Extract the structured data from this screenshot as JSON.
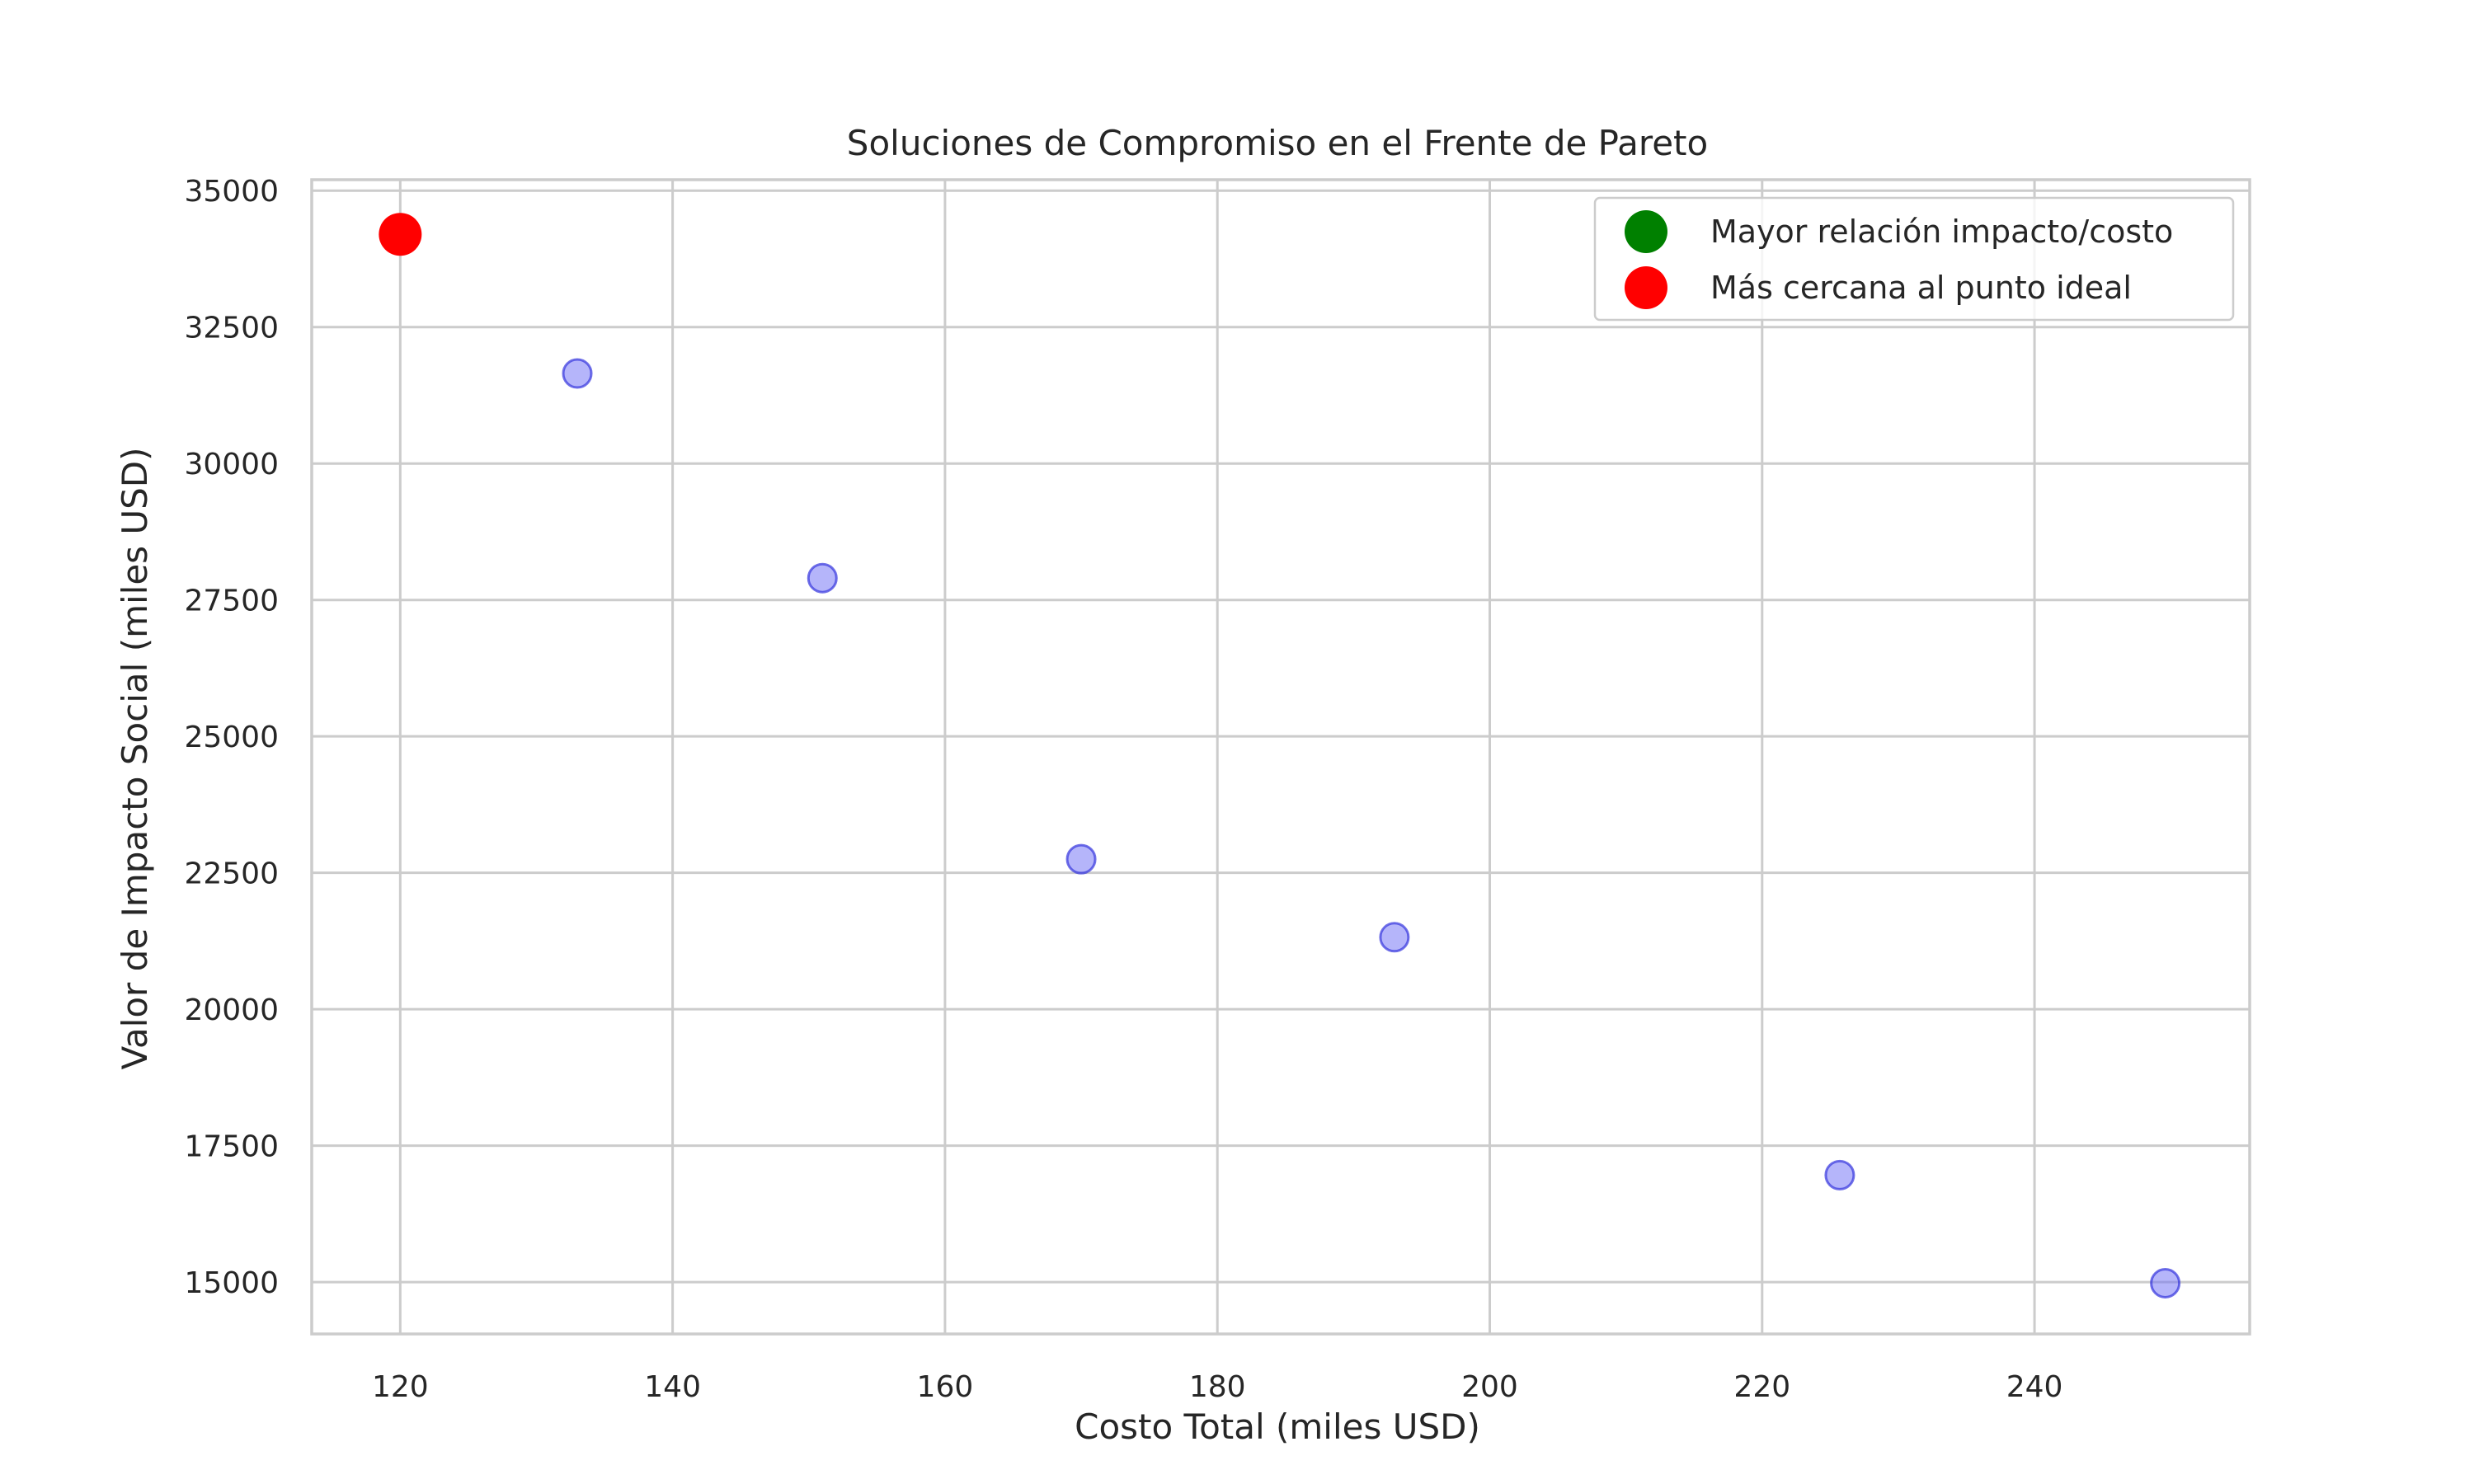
{
  "chart_data": {
    "type": "scatter",
    "title": "Soluciones de Compromiso en el Frente de Pareto",
    "xlabel": "Costo Total (miles USD)",
    "ylabel": "Valor de Impacto Social (miles USD)",
    "xlim": [
      113.5,
      255.8
    ],
    "ylim": [
      14050,
      35200
    ],
    "xticks": [
      120,
      140,
      160,
      180,
      200,
      220,
      240
    ],
    "yticks": [
      15000,
      17500,
      20000,
      22500,
      25000,
      27500,
      30000,
      32500,
      35000
    ],
    "grid": true,
    "legend_position": "top-right",
    "series": [
      {
        "color": "#6b6bf5",
        "edge_color": "#3333dd",
        "opacity": 0.5,
        "points": [
          {
            "x": 133,
            "y": 31650
          },
          {
            "x": 151,
            "y": 27900
          },
          {
            "x": 170,
            "y": 22750
          },
          {
            "x": 193,
            "y": 21320
          },
          {
            "x": 225.7,
            "y": 16960
          },
          {
            "x": 249.6,
            "y": 14980
          }
        ]
      },
      {
        "name": "Mayor relación impacto/costo",
        "color": "#008000",
        "opacity": 1,
        "points": []
      },
      {
        "name": "Más cercana al punto ideal",
        "color": "#ff0000",
        "opacity": 1,
        "points": [
          {
            "x": 120,
            "y": 34200
          }
        ]
      }
    ]
  }
}
